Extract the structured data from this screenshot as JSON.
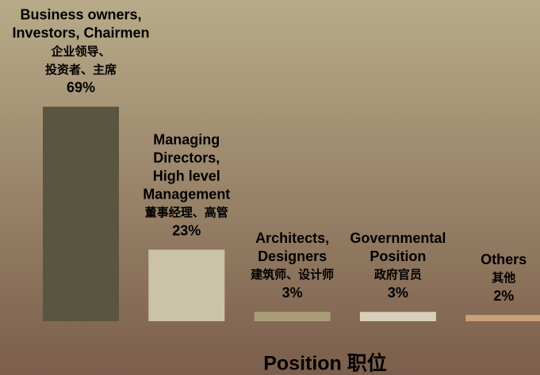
{
  "chart_data": {
    "type": "bar",
    "title": "Position 职位",
    "categories": [
      [
        "Business owners,",
        "Investors, Chairmen",
        "企业领导、",
        "投资者、主席"
      ],
      [
        "Managing",
        "Directors,",
        "High level",
        "Management",
        "董事经理、高管"
      ],
      [
        "Architects,",
        "Designers",
        "建筑师、设计师"
      ],
      [
        "Governmental",
        "Position",
        "政府官员"
      ],
      [
        "Others",
        "其他"
      ]
    ],
    "values": [
      69,
      23,
      3,
      3,
      2
    ],
    "value_labels": [
      "69%",
      "23%",
      "3%",
      "3%",
      "2%"
    ],
    "colors": [
      "#5a5540",
      "#cbc3a7",
      "#aa9e78",
      "#d8d0bc",
      "#c8a07a"
    ]
  }
}
